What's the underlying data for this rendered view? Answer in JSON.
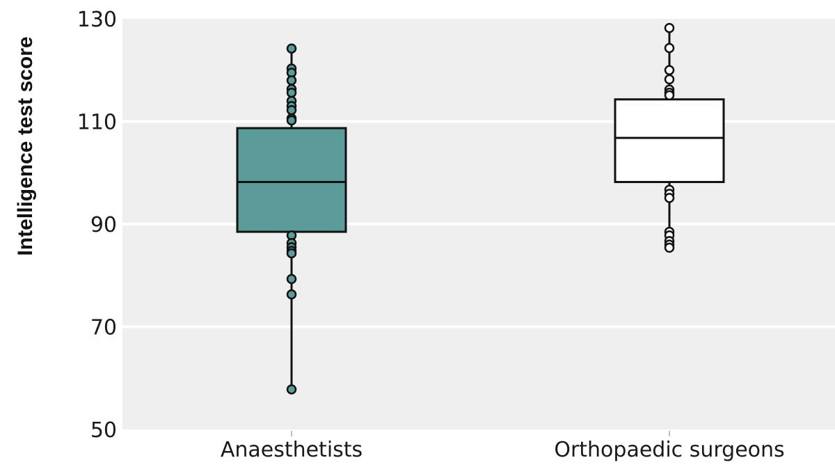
{
  "chart_data": {
    "type": "box",
    "ylabel": "Intelligence test score",
    "ylim": [
      50,
      130
    ],
    "yticks": [
      50,
      70,
      90,
      110,
      130
    ],
    "grid": true,
    "categories": [
      "Anaesthetists",
      "Orthopaedic surgeons"
    ],
    "colors": {
      "background": "#efefef",
      "grid": "#ffffff",
      "anaesthetists_fill": "#5b9b9a",
      "surgeons_fill": "#ffffff",
      "outline": "#111111"
    },
    "series": [
      {
        "category": "Anaesthetists",
        "fill": "#5b9b9a",
        "q1": 88.5,
        "median": 98.2,
        "q3": 108.7,
        "whisker_low": 57.8,
        "whisker_high": 124.2,
        "outliers": [
          124.2,
          120.3,
          119.5,
          118.0,
          116.3,
          115.6,
          114.0,
          113.0,
          112.2,
          110.6,
          110.2,
          87.8,
          86.3,
          85.5,
          84.8,
          84.3,
          79.3,
          76.3,
          57.8
        ]
      },
      {
        "category": "Orthopaedic surgeons",
        "fill": "#ffffff",
        "q1": 98.2,
        "median": 106.8,
        "q3": 114.3,
        "whisker_low": 85.4,
        "whisker_high": 128.2,
        "outliers": [
          128.2,
          124.3,
          120.0,
          118.2,
          116.2,
          115.6,
          115.1,
          96.7,
          95.9,
          95.1,
          88.5,
          87.8,
          86.7,
          86.0,
          85.4
        ]
      }
    ]
  }
}
